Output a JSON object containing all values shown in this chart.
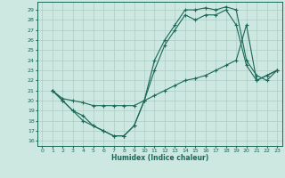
{
  "xlabel": "Humidex (Indice chaleur)",
  "bg_color": "#cce8e0",
  "grid_color": "#aaccc4",
  "line_color": "#1a6858",
  "xlim": [
    -0.5,
    23.5
  ],
  "ylim": [
    15.5,
    29.8
  ],
  "xticks": [
    0,
    1,
    2,
    3,
    4,
    5,
    6,
    7,
    8,
    9,
    10,
    11,
    12,
    13,
    14,
    15,
    16,
    17,
    18,
    19,
    20,
    21,
    22,
    23
  ],
  "yticks": [
    16,
    17,
    18,
    19,
    20,
    21,
    22,
    23,
    24,
    25,
    26,
    27,
    28,
    29
  ],
  "line1_x": [
    1,
    2,
    3,
    4,
    5,
    6,
    7,
    8,
    9,
    10,
    11,
    12,
    13,
    14,
    15,
    16,
    17,
    18,
    19,
    20,
    21,
    22,
    23
  ],
  "line1_y": [
    21,
    20,
    19,
    18.5,
    17.5,
    17,
    16.5,
    16.5,
    17.5,
    20,
    24,
    26,
    27.5,
    29,
    29,
    29.2,
    29,
    29.3,
    29,
    24,
    22.5,
    22,
    23
  ],
  "line2_x": [
    1,
    2,
    3,
    4,
    5,
    6,
    7,
    8,
    9,
    10,
    11,
    12,
    13,
    14,
    15,
    16,
    17,
    18,
    19,
    20,
    21,
    22,
    23
  ],
  "line2_y": [
    21,
    20.2,
    20,
    19.8,
    19.5,
    19.5,
    19.5,
    19.5,
    19.5,
    20,
    20.5,
    21,
    21.5,
    22,
    22.2,
    22.5,
    23,
    23.5,
    24,
    27.5,
    22,
    22.5,
    23
  ],
  "line3_x": [
    1,
    2,
    3,
    4,
    5,
    6,
    7,
    8,
    9,
    10,
    11,
    12,
    13,
    14,
    15,
    16,
    17,
    18,
    19,
    20,
    21,
    22,
    23
  ],
  "line3_y": [
    21,
    20,
    19,
    18,
    17.5,
    17,
    16.5,
    16.5,
    17.5,
    20,
    23,
    25.5,
    27,
    28.5,
    28,
    28.5,
    28.5,
    29,
    27.5,
    23.5,
    22,
    22.5,
    23
  ]
}
